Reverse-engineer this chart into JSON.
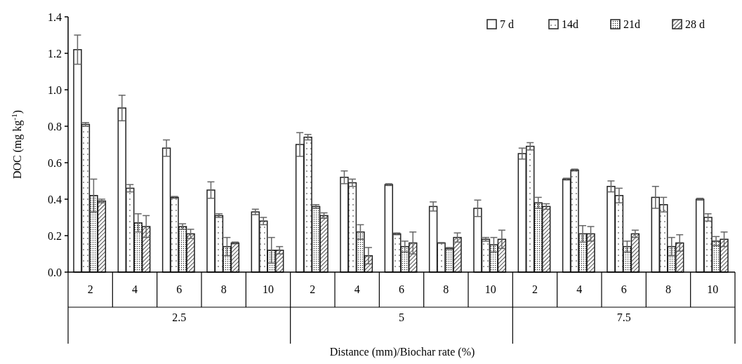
{
  "chart_data": {
    "type": "bar",
    "xlabel": "Distance (mm)/Biochar rate (%)",
    "ylabel": "DOC (mg kg$^{-1}$)",
    "categories": [
      "2",
      "4",
      "6",
      "8",
      "10",
      "2",
      "4",
      "6",
      "8",
      "10",
      "2",
      "4",
      "6",
      "8",
      "10"
    ],
    "annotations": [
      "2.5",
      "5",
      "7.5"
    ],
    "series": [
      {
        "name": "7 d",
        "color": "#222222",
        "values": [
          1.22,
          0.9,
          0.68,
          0.45,
          0.33,
          0.7,
          0.52,
          0.48,
          0.36,
          0.35,
          0.65,
          0.51,
          0.47,
          0.41,
          0.4
        ],
        "errors": [
          0.08,
          0.07,
          0.045,
          0.045,
          0.015,
          0.065,
          0.035,
          0.005,
          0.025,
          0.045,
          0.03,
          0.005,
          0.03,
          0.06,
          0.005
        ]
      },
      {
        "name": "14d",
        "color": "#222222",
        "values": [
          0.81,
          0.46,
          0.41,
          0.31,
          0.28,
          0.74,
          0.49,
          0.21,
          0.16,
          0.18,
          0.69,
          0.56,
          0.42,
          0.37,
          0.3
        ],
        "errors": [
          0.01,
          0.02,
          0.005,
          0.01,
          0.02,
          0.015,
          0.02,
          0.005,
          0.002,
          0.01,
          0.02,
          0.005,
          0.04,
          0.04,
          0.02
        ]
      },
      {
        "name": "21d",
        "color": "#222222",
        "values": [
          0.42,
          0.27,
          0.25,
          0.14,
          0.12,
          0.36,
          0.22,
          0.14,
          0.13,
          0.15,
          0.38,
          0.21,
          0.14,
          0.14,
          0.17
        ],
        "errors": [
          0.09,
          0.05,
          0.015,
          0.05,
          0.07,
          0.01,
          0.04,
          0.03,
          0.005,
          0.04,
          0.03,
          0.045,
          0.03,
          0.05,
          0.025
        ]
      },
      {
        "name": "28 d",
        "color": "#222222",
        "values": [
          0.39,
          0.25,
          0.21,
          0.16,
          0.12,
          0.31,
          0.09,
          0.16,
          0.19,
          0.18,
          0.36,
          0.21,
          0.21,
          0.16,
          0.18
        ],
        "errors": [
          0.01,
          0.06,
          0.025,
          0.005,
          0.02,
          0.015,
          0.045,
          0.06,
          0.025,
          0.05,
          0.015,
          0.04,
          0.02,
          0.045,
          0.04
        ]
      }
    ],
    "ylim": [
      0,
      1.4
    ],
    "yticks": [
      {
        "value": 0,
        "label": "0.0"
      },
      0.2,
      0.4,
      0.6,
      0.8,
      {
        "value": 1,
        "label": "1.0"
      },
      1.2,
      1.4
    ],
    "grid": false,
    "legend": "top right"
  }
}
